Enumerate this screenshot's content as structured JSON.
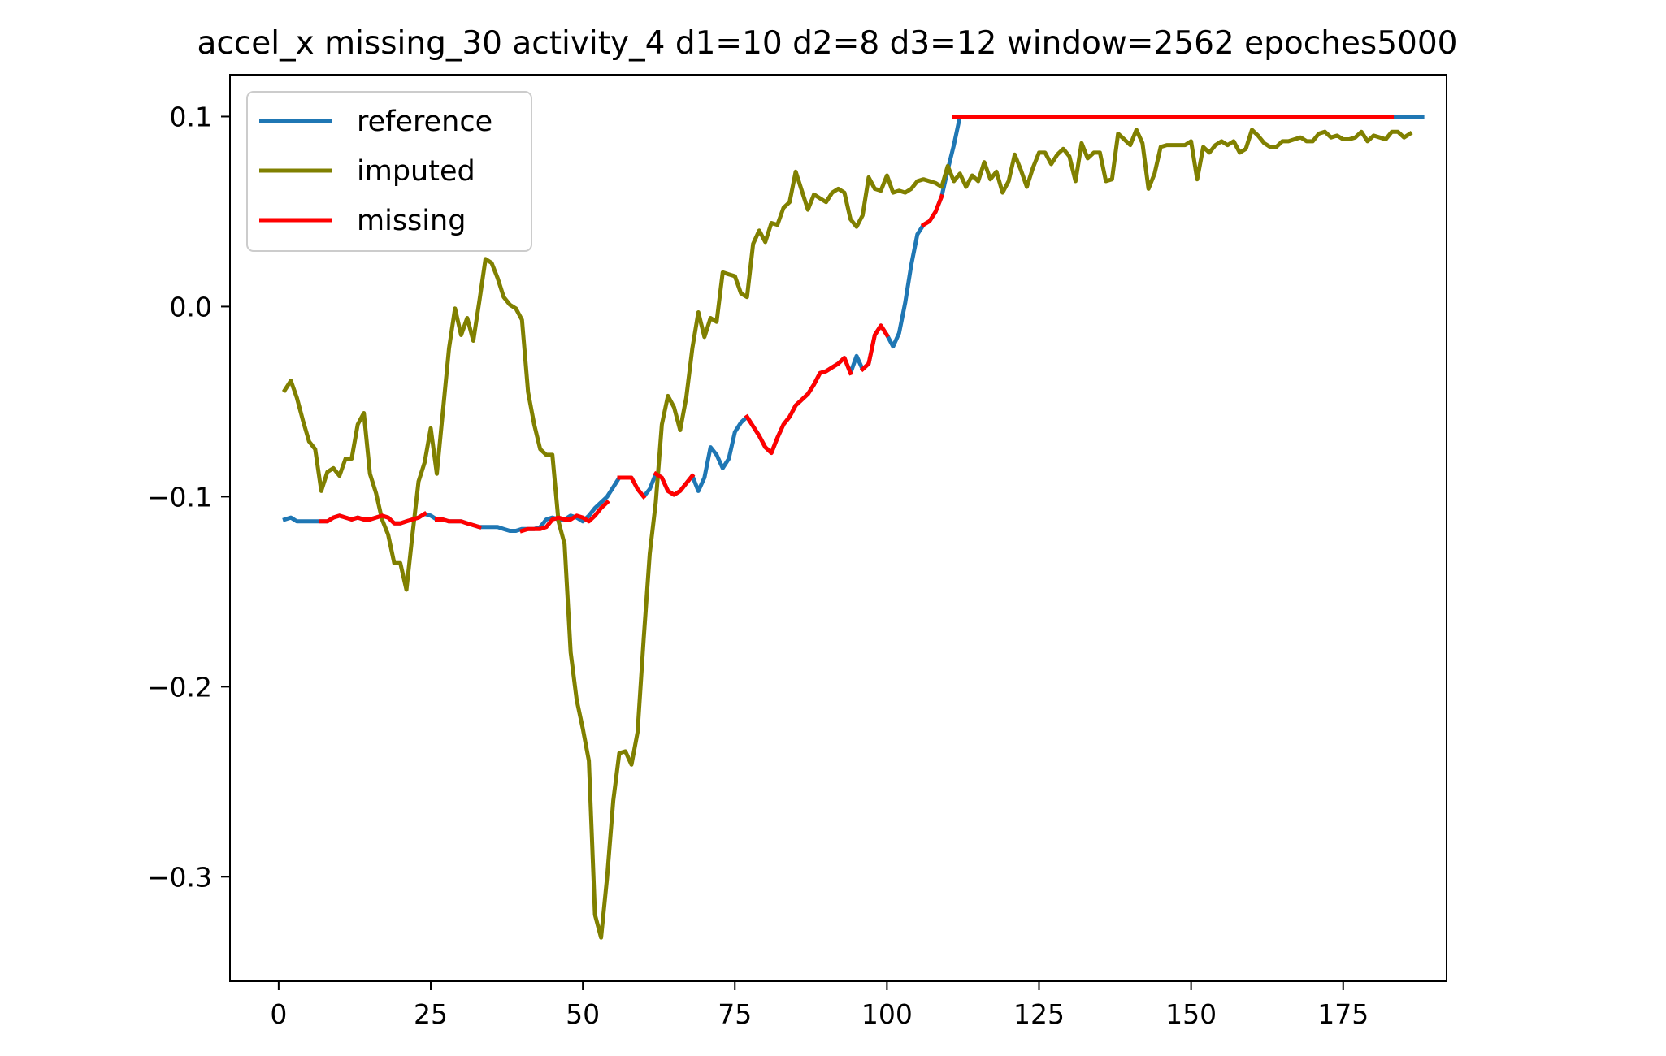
{
  "chart_data": {
    "type": "line",
    "title": "accel_x missing_30 activity_4 d1=10 d2=8 d3=12 window=2562 epoches5000",
    "xlabel": "",
    "ylabel": "",
    "xlim": [
      -8,
      192
    ],
    "ylim": [
      -0.355,
      0.122
    ],
    "grid": false,
    "legend_position": "top-left",
    "x_ticks": [
      0,
      25,
      50,
      75,
      100,
      125,
      150,
      175
    ],
    "x_tick_labels": [
      "0",
      "25",
      "50",
      "75",
      "100",
      "125",
      "150",
      "175"
    ],
    "y_ticks": [
      0.1,
      0.0,
      -0.1,
      -0.2,
      -0.3
    ],
    "y_tick_labels": [
      "0.1",
      "0.0",
      "−0.1",
      "−0.2",
      "−0.3"
    ],
    "series": [
      {
        "name": "reference",
        "color": "#1f77b4",
        "x_start": 1,
        "values": [
          -0.112,
          -0.111,
          -0.113,
          -0.113,
          -0.113,
          -0.113,
          -0.113,
          -0.113,
          -0.111,
          -0.11,
          -0.111,
          -0.112,
          -0.111,
          -0.112,
          -0.112,
          -0.111,
          -0.11,
          -0.111,
          -0.114,
          -0.114,
          -0.113,
          -0.112,
          -0.111,
          -0.109,
          -0.11,
          -0.112,
          -0.112,
          -0.113,
          -0.113,
          -0.113,
          -0.114,
          -0.115,
          -0.116,
          -0.116,
          -0.116,
          -0.116,
          -0.117,
          -0.118,
          -0.118,
          -0.117,
          -0.117,
          -0.117,
          -0.116,
          -0.112,
          -0.111,
          -0.112,
          -0.112,
          -0.11,
          -0.111,
          -0.113,
          -0.11,
          -0.106,
          -0.103,
          -0.1,
          -0.095,
          -0.09,
          -0.09,
          -0.09,
          -0.096,
          -0.1,
          -0.096,
          -0.088,
          -0.09,
          -0.097,
          -0.099,
          -0.097,
          -0.093,
          -0.089,
          -0.097,
          -0.09,
          -0.074,
          -0.078,
          -0.085,
          -0.08,
          -0.066,
          -0.061,
          -0.058,
          -0.063,
          -0.068,
          -0.074,
          -0.077,
          -0.069,
          -0.062,
          -0.058,
          -0.052,
          -0.049,
          -0.046,
          -0.041,
          -0.035,
          -0.034,
          -0.032,
          -0.03,
          -0.027,
          -0.035,
          -0.026,
          -0.033,
          -0.03,
          -0.015,
          -0.01,
          -0.015,
          -0.021,
          -0.014,
          0.002,
          0.022,
          0.038,
          0.043,
          0.045,
          0.05,
          0.058,
          0.072,
          0.085,
          0.1,
          0.1,
          0.1,
          0.1,
          0.1,
          0.1,
          0.1,
          0.1,
          0.1,
          0.1,
          0.1,
          0.1,
          0.1,
          0.1,
          0.1,
          0.1,
          0.1,
          0.1,
          0.1,
          0.1,
          0.1,
          0.1,
          0.1,
          0.1,
          0.1,
          0.1,
          0.1,
          0.1,
          0.1,
          0.1,
          0.1,
          0.1,
          0.1,
          0.1,
          0.1,
          0.1,
          0.1,
          0.1,
          0.1,
          0.1,
          0.1,
          0.1,
          0.1,
          0.1,
          0.1,
          0.1,
          0.1,
          0.1,
          0.1,
          0.1,
          0.1,
          0.1,
          0.1,
          0.1,
          0.1,
          0.1,
          0.1,
          0.1,
          0.1,
          0.1,
          0.1,
          0.1,
          0.1,
          0.1,
          0.1,
          0.1,
          0.1,
          0.1,
          0.1,
          0.1,
          0.1,
          0.1,
          0.1,
          0.1,
          0.1,
          0.1,
          0.1
        ]
      },
      {
        "name": "imputed",
        "color": "#808000",
        "x_start": 1,
        "values": [
          -0.044,
          -0.039,
          -0.048,
          -0.06,
          -0.071,
          -0.075,
          -0.097,
          -0.087,
          -0.085,
          -0.089,
          -0.08,
          -0.08,
          -0.062,
          -0.056,
          -0.088,
          -0.098,
          -0.112,
          -0.12,
          -0.135,
          -0.135,
          -0.149,
          -0.12,
          -0.092,
          -0.082,
          -0.064,
          -0.088,
          -0.055,
          -0.022,
          -0.001,
          -0.015,
          -0.006,
          -0.018,
          0.003,
          0.025,
          0.023,
          0.015,
          0.005,
          0.001,
          -0.001,
          -0.007,
          -0.045,
          -0.062,
          -0.075,
          -0.078,
          -0.078,
          -0.113,
          -0.125,
          -0.182,
          -0.207,
          -0.222,
          -0.239,
          -0.32,
          -0.332,
          -0.3,
          -0.26,
          -0.235,
          -0.234,
          -0.241,
          -0.224,
          -0.175,
          -0.13,
          -0.103,
          -0.062,
          -0.047,
          -0.053,
          -0.065,
          -0.048,
          -0.022,
          -0.003,
          -0.016,
          -0.006,
          -0.008,
          0.018,
          0.017,
          0.016,
          0.007,
          0.005,
          0.033,
          0.04,
          0.034,
          0.044,
          0.043,
          0.052,
          0.055,
          0.071,
          0.061,
          0.051,
          0.059,
          0.057,
          0.055,
          0.06,
          0.062,
          0.06,
          0.046,
          0.042,
          0.048,
          0.068,
          0.062,
          0.061,
          0.069,
          0.06,
          0.061,
          0.06,
          0.062,
          0.066,
          0.067,
          0.066,
          0.065,
          0.063,
          0.074,
          0.066,
          0.07,
          0.063,
          0.069,
          0.066,
          0.076,
          0.067,
          0.071,
          0.06,
          0.066,
          0.08,
          0.072,
          0.063,
          0.073,
          0.081,
          0.081,
          0.075,
          0.08,
          0.083,
          0.079,
          0.066,
          0.086,
          0.078,
          0.081,
          0.081,
          0.066,
          0.067,
          0.091,
          0.088,
          0.085,
          0.093,
          0.086,
          0.062,
          0.07,
          0.084,
          0.085,
          0.085,
          0.085,
          0.085,
          0.087,
          0.067,
          0.084,
          0.081,
          0.085,
          0.087,
          0.085,
          0.087,
          0.081,
          0.083,
          0.093,
          0.09,
          0.086,
          0.084,
          0.084,
          0.087,
          0.087,
          0.088,
          0.089,
          0.087,
          0.087,
          0.091,
          0.092,
          0.089,
          0.09,
          0.088,
          0.088,
          0.089,
          0.092,
          0.087,
          0.09,
          0.089,
          0.088,
          0.092,
          0.092,
          0.089,
          0.091
        ]
      },
      {
        "name": "missing",
        "color": "#ff0000",
        "segments": [
          {
            "x_start": 7,
            "values": [
              -0.113,
              -0.113,
              -0.111,
              -0.11,
              -0.111,
              -0.112,
              -0.111,
              -0.112,
              -0.112,
              -0.111,
              -0.11,
              -0.111,
              -0.114,
              -0.114,
              -0.113,
              -0.112,
              -0.111,
              -0.109
            ]
          },
          {
            "x_start": 26,
            "values": [
              -0.112,
              -0.112,
              -0.113,
              -0.113,
              -0.113,
              -0.114,
              -0.115,
              -0.116
            ]
          },
          {
            "x_start": 40,
            "values": [
              -0.118,
              -0.117,
              -0.117,
              -0.117,
              -0.116,
              -0.112,
              -0.111,
              -0.112,
              -0.112,
              -0.11,
              -0.111,
              -0.113,
              -0.11,
              -0.106,
              -0.103
            ]
          },
          {
            "x_start": 56,
            "values": [
              -0.09,
              -0.09,
              -0.09,
              -0.096,
              -0.1
            ]
          },
          {
            "x_start": 62,
            "values": [
              -0.088,
              -0.09,
              -0.097,
              -0.099,
              -0.097,
              -0.093,
              -0.089
            ]
          },
          {
            "x_start": 77,
            "values": [
              -0.058,
              -0.063,
              -0.068,
              -0.074,
              -0.077,
              -0.069,
              -0.062,
              -0.058,
              -0.052,
              -0.049,
              -0.046,
              -0.041,
              -0.035,
              -0.034,
              -0.032,
              -0.03,
              -0.027,
              -0.035
            ]
          },
          {
            "x_start": 96,
            "values": [
              -0.033,
              -0.03,
              -0.015,
              -0.01,
              -0.015
            ]
          },
          {
            "x_start": 106,
            "values": [
              0.043,
              0.045,
              0.05,
              0.058
            ]
          },
          {
            "x_start": 111,
            "values": [
              0.1,
              0.1,
              0.1,
              0.1,
              0.1,
              0.1,
              0.1,
              0.1,
              0.1,
              0.1,
              0.1,
              0.1,
              0.1,
              0.1,
              0.1,
              0.1,
              0.1,
              0.1,
              0.1,
              0.1,
              0.1,
              0.1,
              0.1,
              0.1,
              0.1,
              0.1,
              0.1,
              0.1,
              0.1,
              0.1,
              0.1,
              0.1,
              0.1,
              0.1,
              0.1,
              0.1,
              0.1,
              0.1,
              0.1,
              0.1,
              0.1,
              0.1,
              0.1,
              0.1,
              0.1,
              0.1,
              0.1,
              0.1,
              0.1,
              0.1,
              0.1,
              0.1,
              0.1,
              0.1,
              0.1,
              0.1,
              0.1,
              0.1,
              0.1,
              0.1,
              0.1,
              0.1,
              0.1,
              0.1,
              0.1,
              0.1,
              0.1,
              0.1,
              0.1,
              0.1,
              0.1,
              0.1,
              0.1
            ]
          }
        ]
      }
    ],
    "legend": [
      {
        "label": "reference",
        "color": "#1f77b4"
      },
      {
        "label": "imputed",
        "color": "#808000"
      },
      {
        "label": "missing",
        "color": "#ff0000"
      }
    ]
  }
}
